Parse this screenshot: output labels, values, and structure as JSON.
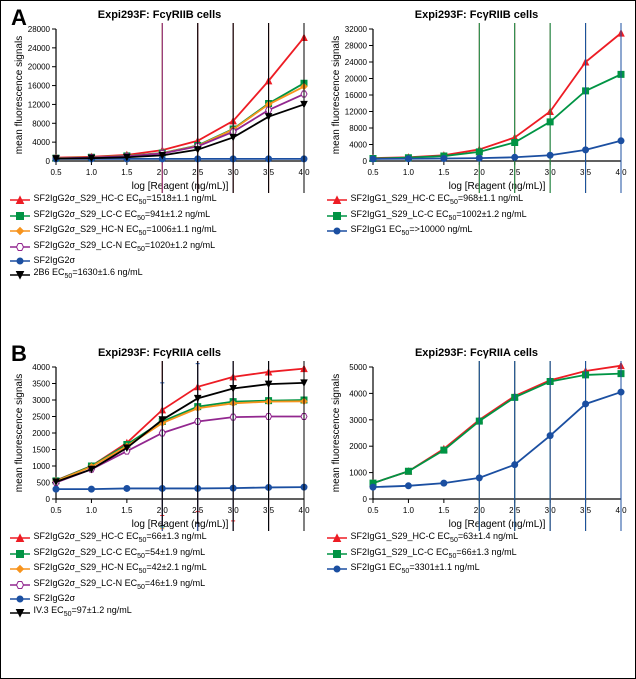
{
  "global": {
    "x_label": "log [Reagent (ng/mL)]",
    "y_label": "mean fluorescence signals",
    "label_fontsize": 10,
    "tick_fontsize": 8,
    "x_ticks": [
      0.5,
      1.0,
      1.5,
      2.0,
      2.5,
      3.0,
      3.5,
      4.0
    ],
    "grid_color": "#ffffff",
    "axis_color": "#000000",
    "background_color": "#ffffff",
    "line_width": 1.8
  },
  "panels": {
    "A": {
      "label": "A",
      "title_cells": "Expi293F: FcγRIIB cells"
    },
    "B": {
      "label": "B",
      "title_cells": "Expi293F: FcγRIIA cells"
    }
  },
  "charts": {
    "A_left": {
      "title": "Expi293F: FcγRIIB cells",
      "ylim": [
        0,
        28000
      ],
      "ytick_step": 4000,
      "series": [
        {
          "key": "SF2IgG2σ_S29_HC-C",
          "marker": "triangle",
          "fill": "closed",
          "color": "#ed1c24",
          "y": [
            700,
            900,
            1300,
            2300,
            4300,
            8500,
            17000,
            26200
          ],
          "ec50": "1518±1.1 ng/mL"
        },
        {
          "key": "SF2IgG2σ_S29_LC-C",
          "marker": "square",
          "fill": "closed",
          "color": "#009444",
          "y": [
            600,
            800,
            1100,
            1700,
            3300,
            6800,
            12200,
            16500
          ],
          "ec50": "941±1.2 ng/mL"
        },
        {
          "key": "SF2IgG2σ_S29_HC-N",
          "marker": "diamond",
          "fill": "closed",
          "color": "#f7941d",
          "y": [
            600,
            800,
            1050,
            1650,
            3200,
            6700,
            12000,
            15800
          ],
          "ec50": "1006±1.1 ng/mL"
        },
        {
          "key": "SF2IgG2σ_S29_LC-N",
          "marker": "hex",
          "fill": "open",
          "color": "#92278f",
          "y": [
            550,
            750,
            1000,
            1600,
            3100,
            6200,
            10800,
            14200
          ],
          "ec50": "1020±1.2 ng/mL"
        },
        {
          "key": "SF2IgG2σ",
          "marker": "circle",
          "fill": "closed",
          "color": "#1b4fa1",
          "y": [
            450,
            450,
            450,
            450,
            450,
            450,
            450,
            450
          ],
          "ec50": null
        },
        {
          "key": "2B6",
          "marker": "itriangle",
          "fill": "closed",
          "color": "#000000",
          "y": [
            500,
            600,
            800,
            1200,
            2400,
            5000,
            9400,
            12000
          ],
          "ec50": "1630±1.6 ng/mL"
        }
      ]
    },
    "A_right": {
      "title": "Expi293F: FcγRIIB cells",
      "ylim": [
        0,
        32000
      ],
      "ytick_step": 4000,
      "series": [
        {
          "key": "SF2IgG1_S29_HC-C",
          "marker": "triangle",
          "fill": "closed",
          "color": "#ed1c24",
          "y": [
            700,
            900,
            1400,
            2800,
            5700,
            12000,
            24000,
            31000
          ],
          "ec50": "968±1.1 ng/mL"
        },
        {
          "key": "SF2IgG1_S29_LC-C",
          "marker": "square",
          "fill": "closed",
          "color": "#009444",
          "y": [
            600,
            800,
            1200,
            2200,
            4500,
            9500,
            17000,
            21000
          ],
          "ec50": "1002±1.2 ng/mL"
        },
        {
          "key": "SF2IgG1",
          "marker": "circle",
          "fill": "closed",
          "color": "#1b4fa1",
          "y": [
            500,
            550,
            600,
            700,
            900,
            1400,
            2700,
            4900
          ],
          "ec50": ">10000 ng/mL"
        }
      ]
    },
    "B_left": {
      "title": "Expi293F: FcγRIIA cells",
      "ylim": [
        0,
        4000
      ],
      "ytick_step": 500,
      "series": [
        {
          "key": "SF2IgG2σ_S29_HC-C",
          "marker": "triangle",
          "fill": "closed",
          "color": "#ed1c24",
          "y": [
            560,
            1000,
            1700,
            2700,
            3400,
            3700,
            3850,
            3950
          ],
          "ec50": "66±1.3 ng/mL"
        },
        {
          "key": "SF2IgG2σ_S29_LC-C",
          "marker": "square",
          "fill": "closed",
          "color": "#009444",
          "y": [
            550,
            1000,
            1650,
            2350,
            2800,
            2950,
            2980,
            3000
          ],
          "ec50": "54±1.9 ng/mL"
        },
        {
          "key": "SF2IgG2σ_S29_HC-N",
          "marker": "diamond",
          "fill": "closed",
          "color": "#f7941d",
          "y": [
            540,
            980,
            1600,
            2300,
            2750,
            2900,
            2950,
            2960
          ],
          "ec50": "42±2.1 ng/mL"
        },
        {
          "key": "SF2IgG2σ_S29_LC-N",
          "marker": "hex",
          "fill": "open",
          "color": "#92278f",
          "y": [
            500,
            900,
            1450,
            2000,
            2350,
            2480,
            2500,
            2500
          ],
          "ec50": "46±1.9 ng/mL"
        },
        {
          "key": "SF2IgG2σ",
          "marker": "circle",
          "fill": "closed",
          "color": "#1b4fa1",
          "y": [
            300,
            300,
            320,
            320,
            320,
            330,
            350,
            360
          ],
          "ec50": null
        },
        {
          "key": "IV.3",
          "marker": "itriangle",
          "fill": "closed",
          "color": "#000000",
          "y": [
            520,
            900,
            1550,
            2400,
            3050,
            3350,
            3480,
            3520
          ],
          "ec50": "97±1.2 ng/mL"
        }
      ]
    },
    "B_right": {
      "title": "Expi293F: FcγRIIA cells",
      "ylim": [
        0,
        5000
      ],
      "ytick_step": 1000,
      "series": [
        {
          "key": "SF2IgG1_S29_HC-C",
          "marker": "triangle",
          "fill": "closed",
          "color": "#ed1c24",
          "y": [
            600,
            1050,
            1900,
            3000,
            3900,
            4500,
            4850,
            5050
          ],
          "ec50": "63±1.4 ng/mL"
        },
        {
          "key": "SF2IgG1_S29_LC-C",
          "marker": "square",
          "fill": "closed",
          "color": "#009444",
          "y": [
            600,
            1050,
            1850,
            2950,
            3850,
            4450,
            4700,
            4750
          ],
          "ec50": "66±1.3 ng/mL"
        },
        {
          "key": "SF2IgG1",
          "marker": "circle",
          "fill": "closed",
          "color": "#1b4fa1",
          "y": [
            450,
            500,
            600,
            800,
            1300,
            2400,
            3600,
            4050
          ],
          "ec50": "3301±1.1 ng/mL"
        }
      ]
    }
  }
}
